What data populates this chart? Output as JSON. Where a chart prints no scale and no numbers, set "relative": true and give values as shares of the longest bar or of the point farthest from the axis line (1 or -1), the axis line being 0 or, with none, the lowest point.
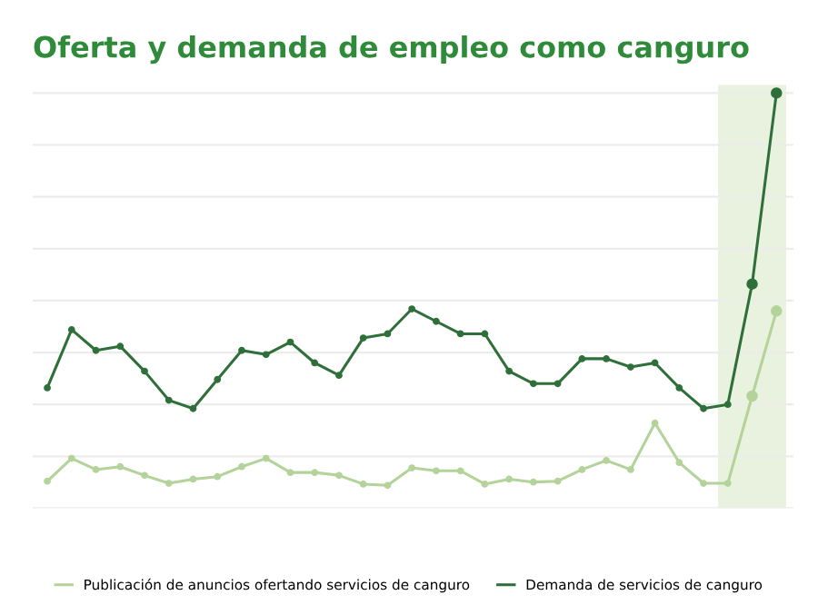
{
  "chart_data": {
    "type": "line",
    "title": "Oferta y demanda de empleo como canguro",
    "relative": true,
    "categories": [
      null,
      null,
      null,
      null,
      null,
      null,
      null,
      null,
      null,
      null,
      null,
      null,
      null,
      null,
      null,
      null,
      null,
      null,
      null,
      null,
      null,
      null,
      null,
      null,
      null,
      null,
      null,
      null,
      null,
      null,
      null
    ],
    "series": [
      {
        "name": "Publicación de anuncios ofertando servicios de canguro",
        "color": "#b3d39a",
        "values": [
          0.065,
          0.12,
          0.093,
          0.1,
          0.079,
          0.06,
          0.07,
          0.076,
          0.1,
          0.12,
          0.086,
          0.086,
          0.079,
          0.058,
          0.055,
          0.097,
          0.09,
          0.09,
          0.058,
          0.07,
          0.063,
          0.065,
          0.093,
          0.115,
          0.093,
          0.205,
          0.11,
          0.06,
          0.06,
          0.27,
          0.475
        ]
      },
      {
        "name": "Demanda de servicios de canguro",
        "color": "#2f6f3a",
        "values": [
          0.29,
          0.43,
          0.38,
          0.39,
          0.33,
          0.26,
          0.24,
          0.31,
          0.38,
          0.37,
          0.4,
          0.35,
          0.32,
          0.41,
          0.42,
          0.48,
          0.45,
          0.42,
          0.42,
          0.33,
          0.3,
          0.3,
          0.36,
          0.36,
          0.34,
          0.35,
          0.29,
          0.24,
          0.25,
          0.54,
          1.0
        ]
      }
    ],
    "grid": "y",
    "legend": "bottom",
    "marker": "circle",
    "line_style": "solid"
  }
}
